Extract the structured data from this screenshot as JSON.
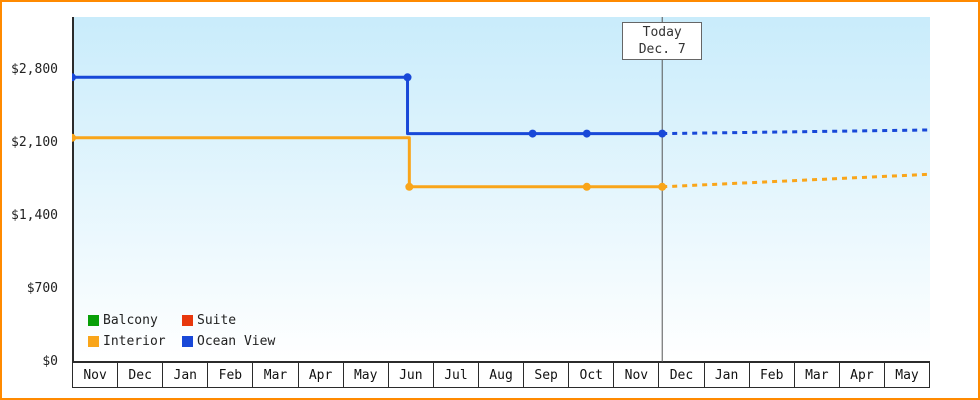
{
  "chart_data": {
    "type": "line",
    "title": "",
    "x_categories": [
      "Nov",
      "Dec",
      "Jan",
      "Feb",
      "Mar",
      "Apr",
      "May",
      "Jun",
      "Jul",
      "Aug",
      "Sep",
      "Oct",
      "Nov",
      "Dec",
      "Jan",
      "Feb",
      "Mar",
      "Apr",
      "May"
    ],
    "y_ticks": [
      0,
      700,
      1400,
      2100,
      2800
    ],
    "y_tick_labels": [
      "$0",
      "$700",
      "$1,400",
      "$2,100",
      "$2,800"
    ],
    "ylim": [
      0,
      3308
    ],
    "grid": false,
    "legend_position": "bottom-left",
    "today_marker": {
      "line1": "Today",
      "line2": "Dec. 7",
      "month_x": 13.07
    },
    "series": [
      {
        "name": "Interior",
        "color": "#f9a51a",
        "solid_points": [
          [
            0,
            2150
          ],
          [
            7.47,
            2150
          ],
          [
            7.47,
            1680
          ],
          [
            13.07,
            1680
          ]
        ],
        "dashed_points": [
          [
            13.07,
            1680
          ],
          [
            19,
            1800
          ]
        ],
        "markers": [
          [
            0,
            2150
          ],
          [
            7.47,
            1680
          ],
          [
            11.4,
            1680
          ],
          [
            13.07,
            1680
          ]
        ]
      },
      {
        "name": "Ocean View",
        "color": "#1848d8",
        "solid_points": [
          [
            0,
            2730
          ],
          [
            7.43,
            2730
          ],
          [
            7.43,
            2190
          ],
          [
            13.07,
            2190
          ]
        ],
        "dashed_points": [
          [
            13.07,
            2190
          ],
          [
            19,
            2225
          ]
        ],
        "markers": [
          [
            0,
            2730
          ],
          [
            7.43,
            2730
          ],
          [
            10.2,
            2190
          ],
          [
            11.4,
            2190
          ],
          [
            13.07,
            2190
          ]
        ]
      }
    ],
    "legend": [
      {
        "label": "Balcony",
        "color": "#089f08"
      },
      {
        "label": "Suite",
        "color": "#e8380d"
      },
      {
        "label": "Interior",
        "color": "#f9a51a"
      },
      {
        "label": "Ocean View",
        "color": "#1848d8"
      }
    ]
  },
  "colors": {
    "frame_border": "#ff8a00",
    "plot_gradient_top": "#c9ecfb",
    "plot_gradient_bottom": "#ffffff",
    "axis": "#2b2b2b",
    "today_line": "#555555",
    "text": "#222222"
  }
}
